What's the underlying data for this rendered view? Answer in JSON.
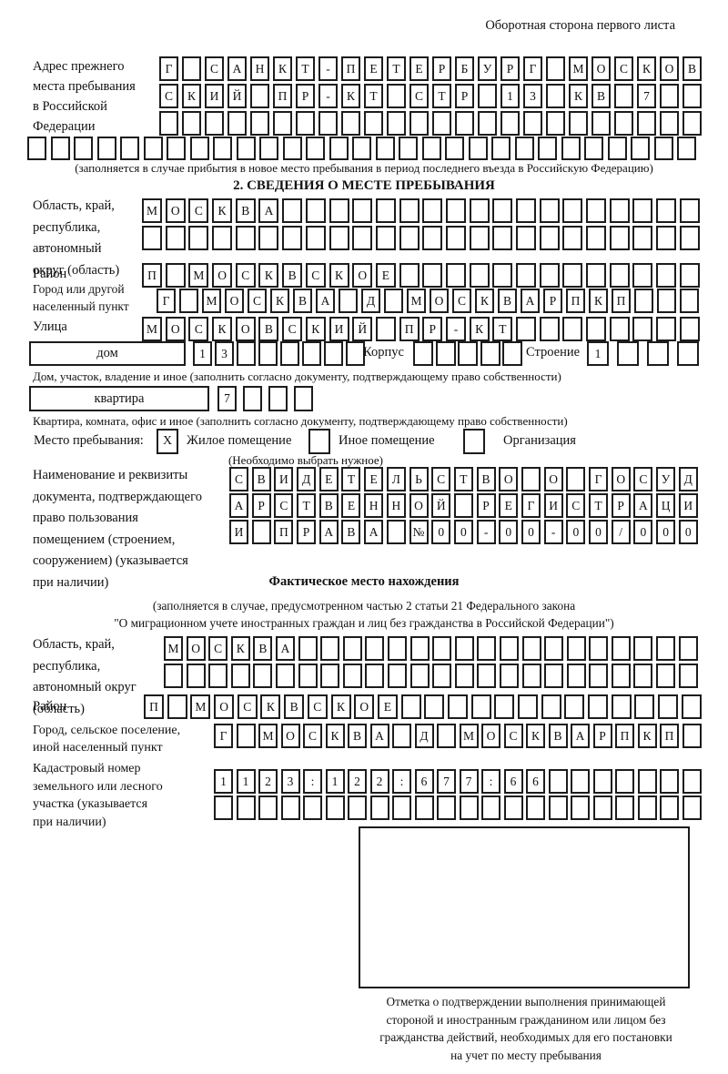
{
  "page": {
    "side_note": "Оборотная сторона первого листа"
  },
  "prev_address": {
    "label_lines": [
      "Адрес прежнего",
      "места пребывания",
      "в Российской",
      "Федерации"
    ],
    "rows": [
      {
        "chars": "Г САНКТ-ПЕТЕРБУРГ МОСКОВ",
        "total": 24
      },
      {
        "chars": "СКИЙ ПР-КТ СТР 13 КВ 7",
        "total": 24
      },
      {
        "chars": "",
        "total": 24
      }
    ],
    "full_row": {
      "chars": "",
      "total": 29
    },
    "note": "(заполняется в случае прибытия в новое место пребывания в период последнего въезда в Российскую Федерацию)"
  },
  "section2": {
    "title": "2. СВЕДЕНИЯ О МЕСТЕ ПРЕБЫВАНИЯ",
    "region": {
      "label_lines": [
        "Область, край,",
        "республика,",
        "автономный",
        "округ (область)"
      ],
      "rows": [
        {
          "chars": "МОСКВА",
          "total": 24
        },
        {
          "chars": "",
          "total": 24
        }
      ]
    },
    "district": {
      "label": "Район",
      "row": {
        "chars": "П МОСКВСКОЕ",
        "total": 24
      }
    },
    "city": {
      "label_lines": [
        "Город или другой",
        "населенный пункт"
      ],
      "row": {
        "chars": "Г МОСКВА Д МОСКВАРПКП",
        "total": 24
      }
    },
    "street": {
      "label": "Улица",
      "row": {
        "chars": "МОСКОВСКИЙ ПР-КТ",
        "total": 24
      }
    },
    "house": {
      "box_label": "дом",
      "row": {
        "chars": "13",
        "total": 8
      },
      "korpus_label": "Корпус",
      "korpus_row": {
        "chars": "",
        "total": 5
      },
      "stroenie_label": "Строение",
      "stroenie_row": {
        "chars": "1",
        "total": 4
      },
      "note": "Дом, участок, владение и иное (заполнить согласно документу, подтверждающему право собственности)"
    },
    "apartment": {
      "box_label": "квартира",
      "row": {
        "chars": "7",
        "total": 4
      },
      "note": "Квартира, комната, офис и иное (заполнить согласно документу, подтверждающему право собственности)"
    },
    "stay_place": {
      "label": "Место пребывания:",
      "options": [
        {
          "label": "Жилое помещение",
          "checked": "X"
        },
        {
          "label": "Иное помещение",
          "checked": ""
        },
        {
          "label": "Организация",
          "checked": ""
        }
      ],
      "note": "(Необходимо выбрать нужное)"
    },
    "document": {
      "label_lines": [
        "Наименование и реквизиты",
        "документа, подтверждающего",
        "право пользования",
        "помещением (строением,",
        "сооружением) (указывается",
        "при наличии)"
      ],
      "rows": [
        {
          "chars": "СВИДЕТЕЛЬСТВО О ГОСУД",
          "total": 21
        },
        {
          "chars": "АРСТВЕННОЙ РЕГИСТРАЦИ",
          "total": 21
        },
        {
          "chars": "И ПРАВА №00-00-00/000",
          "total": 21
        }
      ]
    }
  },
  "actual_location": {
    "title": "Фактическое место нахождения",
    "note_lines": [
      "(заполняется в случае, предусмотренном частью 2 статьи 21 Федерального закона",
      "\"О миграционном учете иностранных граждан и лиц без гражданства в Российской Федерации\")"
    ],
    "region": {
      "label_lines": [
        "Область, край,",
        "республика,",
        "автономный округ",
        "(область)"
      ],
      "rows": [
        {
          "chars": "МОСКВА",
          "total": 24
        },
        {
          "chars": "",
          "total": 24
        }
      ]
    },
    "district": {
      "label": "Район",
      "row": {
        "chars": "П МОСКВСКОЕ",
        "total": 24
      }
    },
    "city": {
      "label_lines": [
        "Город, сельское поселение,",
        "иной населенный пункт"
      ],
      "row": {
        "chars": "Г МОСКВА Д МОСКВАРПКП",
        "total": 22
      }
    },
    "cadastral": {
      "label_lines": [
        "Кадастровый номер",
        "земельного или лесного",
        "участка (указывается",
        "при наличии)"
      ],
      "rows": [
        {
          "chars": "1123:122:677:66",
          "total": 22
        },
        {
          "chars": "",
          "total": 22
        }
      ]
    },
    "stamp_note_lines": [
      "Отметка о подтверждении выполнения принимающей",
      "стороной и иностранным гражданином или лицом без",
      "гражданства действий, необходимых для его постановки",
      "на учет по месту пребывания"
    ]
  }
}
